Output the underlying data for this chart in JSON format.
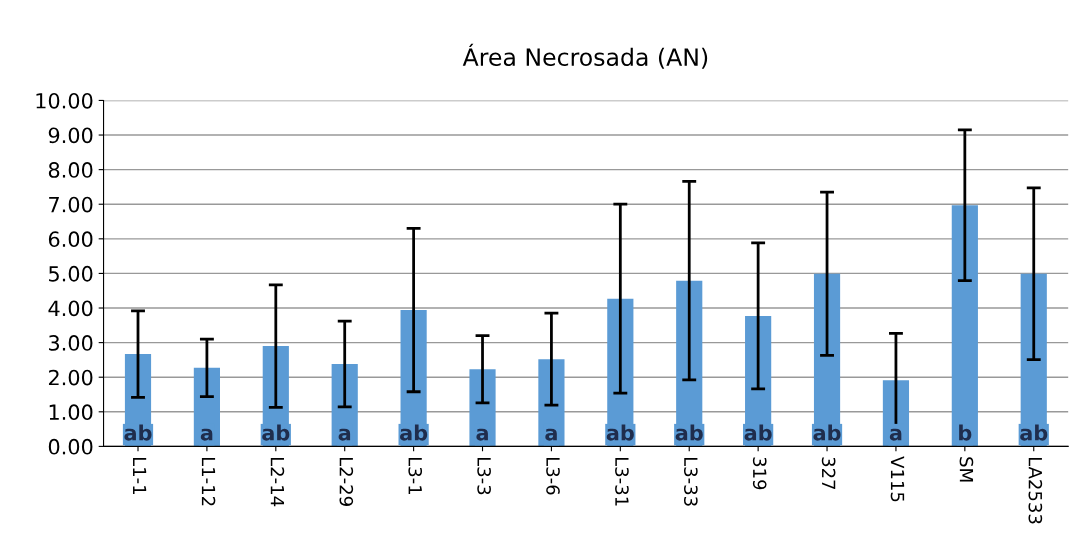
{
  "chart_data": {
    "type": "bar",
    "title": "Área Necrosada (AN)",
    "categories": [
      "L1-1",
      "L1-12",
      "L2-14",
      "L2-29",
      "L3-1",
      "L3-3",
      "L3-6",
      "L3-31",
      "L3-33",
      "319",
      "327",
      "V115",
      "SM",
      "LA2533"
    ],
    "values": [
      2.67,
      2.27,
      2.9,
      2.38,
      3.94,
      2.23,
      2.52,
      4.27,
      4.79,
      3.77,
      4.99,
      1.91,
      6.97,
      4.99
    ],
    "errors": [
      1.25,
      0.83,
      1.77,
      1.24,
      2.36,
      0.97,
      1.33,
      2.73,
      2.87,
      2.11,
      2.36,
      1.36,
      2.18,
      2.48
    ],
    "color": "#5b9bd5",
    "ylim": [
      0,
      10
    ],
    "yticks": [
      {
        "value": 0,
        "label": "0.00"
      },
      {
        "value": 1,
        "label": "1.00"
      },
      {
        "value": 2,
        "label": "2.00"
      },
      {
        "value": 3,
        "label": "3.00"
      },
      {
        "value": 4,
        "label": "4.00"
      },
      {
        "value": 5,
        "label": "5.00"
      },
      {
        "value": 6,
        "label": "6.00"
      },
      {
        "value": 7,
        "label": "7.00"
      },
      {
        "value": 8,
        "label": "8.00"
      },
      {
        "value": 9,
        "label": "9.00"
      },
      {
        "value": 10,
        "label": "10.00"
      }
    ],
    "grid": "y",
    "annotations": [
      "ab",
      "a",
      "ab",
      "a",
      "ab",
      "a",
      "a",
      "ab",
      "ab",
      "ab",
      "ab",
      "a",
      "b",
      "ab"
    ]
  }
}
